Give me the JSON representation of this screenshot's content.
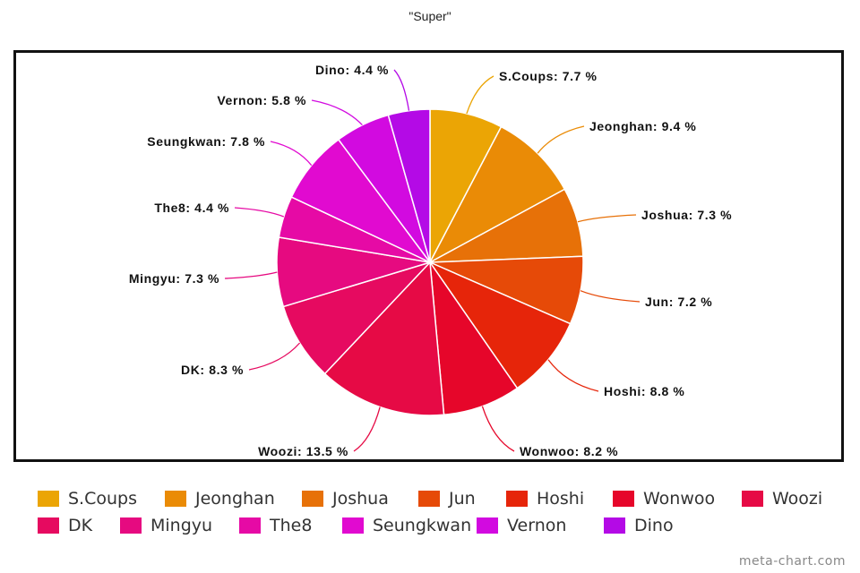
{
  "chart_data": {
    "type": "pie",
    "title": "\"Super\"",
    "slices": [
      {
        "name": "S.Coups",
        "value": 7.7,
        "label": "S.Coups: 7.7 %",
        "color": "#EBA505"
      },
      {
        "name": "Jeonghan",
        "value": 9.4,
        "label": "Jeonghan: 9.4 %",
        "color": "#EA8B06"
      },
      {
        "name": "Joshua",
        "value": 7.3,
        "label": "Joshua: 7.3 %",
        "color": "#E77108"
      },
      {
        "name": "Jun",
        "value": 7.2,
        "label": "Jun: 7.2 %",
        "color": "#E64A08"
      },
      {
        "name": "Hoshi",
        "value": 8.8,
        "label": "Hoshi: 8.8 %",
        "color": "#E6250A"
      },
      {
        "name": "Wonwoo",
        "value": 8.2,
        "label": "Wonwoo: 8.2 %",
        "color": "#E6062A"
      },
      {
        "name": "Woozi",
        "value": 13.5,
        "label": "Woozi: 13.5 %",
        "color": "#E60A45"
      },
      {
        "name": "DK",
        "value": 8.3,
        "label": "DK: 8.3 %",
        "color": "#E60A60"
      },
      {
        "name": "Mingyu",
        "value": 7.3,
        "label": "Mingyu: 7.3 %",
        "color": "#E60A80"
      },
      {
        "name": "The8",
        "value": 4.4,
        "label": "The8: 4.4 %",
        "color": "#E60AA5"
      },
      {
        "name": "Seungkwan",
        "value": 7.8,
        "label": "Seungkwan: 7.8 %",
        "color": "#E10AD0"
      },
      {
        "name": "Vernon",
        "value": 5.8,
        "label": "Vernon: 5.8 %",
        "color": "#D20AE0"
      },
      {
        "name": "Dino",
        "value": 4.4,
        "label": "Dino: 4.4 %",
        "color": "#B40AE6"
      }
    ],
    "legend_position": "bottom"
  },
  "watermark": "meta-chart.com"
}
